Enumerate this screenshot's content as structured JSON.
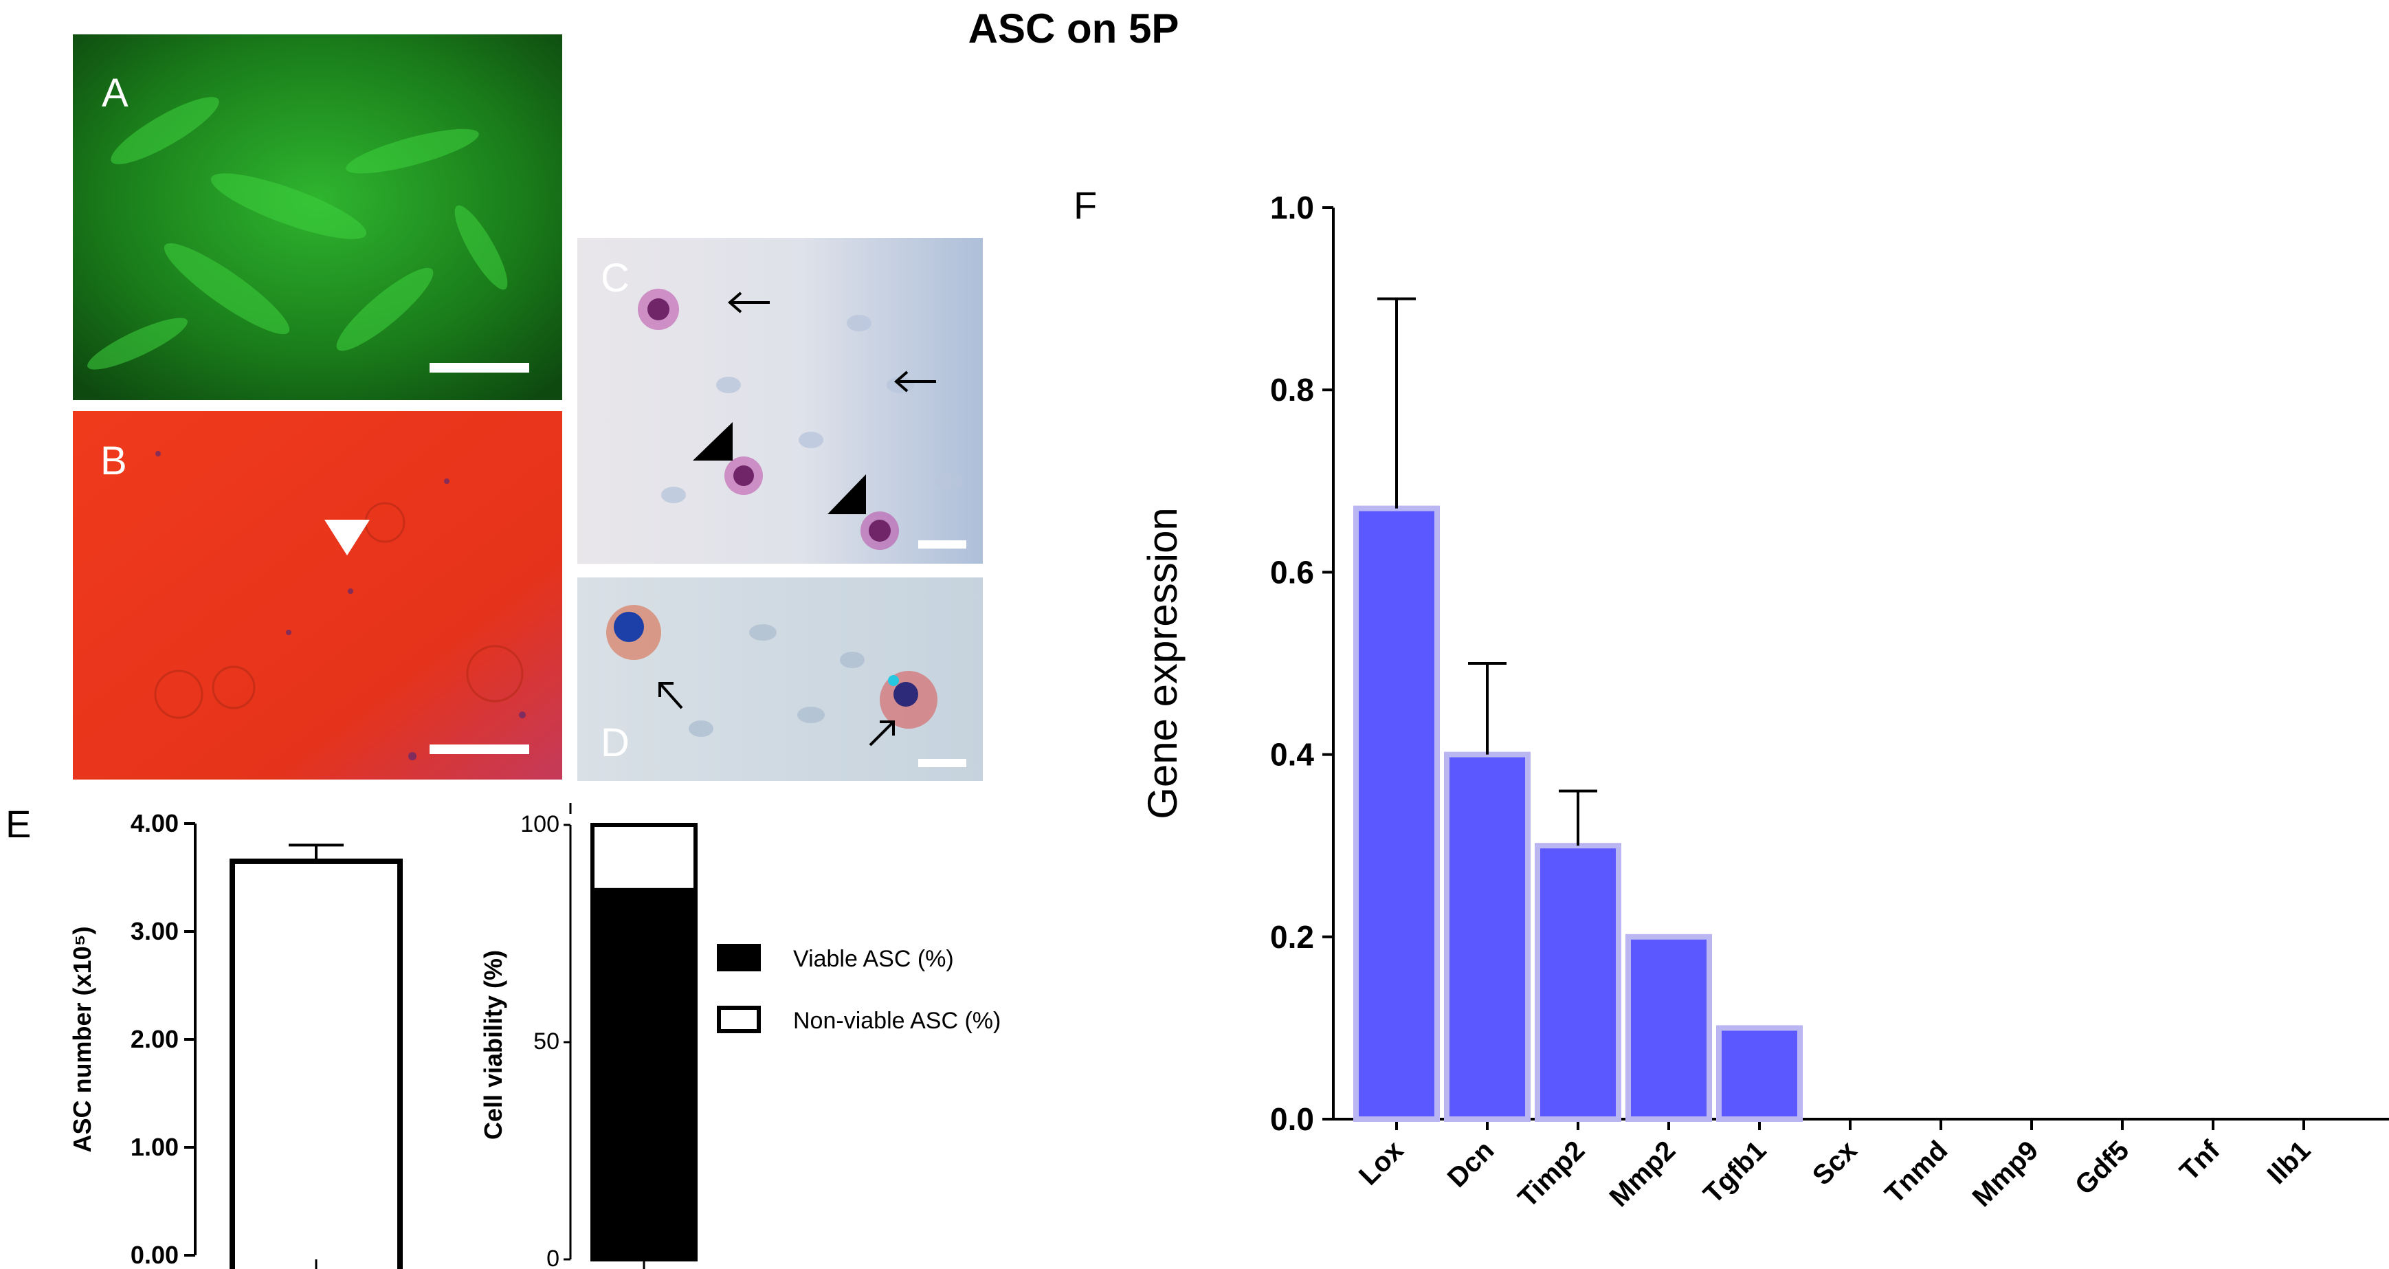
{
  "title": "ASC on 5P",
  "panels": {
    "A": {
      "label": "A"
    },
    "B": {
      "label": "B"
    },
    "C": {
      "label": "C"
    },
    "D": {
      "label": "D"
    },
    "E": {
      "label": "E"
    },
    "F": {
      "label": "F"
    }
  },
  "colors": {
    "fluorescence": "#1a7d1a",
    "stain_red": "#e8341a",
    "histology_bg": "#dfe3ea",
    "bar_f": "#5b58ff",
    "bar_f_edge": "#b9b6f2"
  },
  "chart_data": [
    {
      "id": "E-left",
      "type": "bar",
      "categories": [
        ""
      ],
      "values": [
        3.65
      ],
      "errors": [
        0.15
      ],
      "ylabel": "ASC number (x10⁵)",
      "ylim": [
        0,
        4
      ],
      "yticks": [
        "0.00",
        "1.00",
        "2.00",
        "3.00",
        "4.00"
      ],
      "ytick_values": [
        0,
        1,
        2,
        3,
        4
      ],
      "grid": false
    },
    {
      "id": "E-right",
      "type": "bar",
      "stacked": true,
      "categories": [
        ""
      ],
      "series": [
        {
          "name": "Viable ASC (%)",
          "values": [
            85
          ],
          "color": "#000000"
        },
        {
          "name": "Non-viable ASC (%)",
          "values": [
            15
          ],
          "color": "#ffffff"
        }
      ],
      "ylabel": "Cell viability (%)",
      "ylim": [
        0,
        100
      ],
      "yticks": [
        "0",
        "50",
        "100"
      ],
      "ytick_values": [
        0,
        50,
        100
      ],
      "legend_position": "right",
      "grid": false
    },
    {
      "id": "F",
      "type": "bar",
      "title": "",
      "xlabel": "",
      "ylabel": "Gene expression",
      "categories": [
        "Lox",
        "Dcn",
        "Timp2",
        "Mmp2",
        "Tgfb1",
        "Scx",
        "Tnmd",
        "Mmp9",
        "Gdf5",
        "Tnf",
        "Ilb1"
      ],
      "values": [
        0.67,
        0.4,
        0.3,
        0.2,
        0.1,
        0,
        0,
        0,
        0,
        0,
        0
      ],
      "errors": [
        0.23,
        0.1,
        0.06,
        0,
        0,
        0,
        0,
        0,
        0,
        0,
        0
      ],
      "ylim": [
        0,
        1.0
      ],
      "yticks": [
        "0.0",
        "0.2",
        "0.4",
        "0.6",
        "0.8",
        "1.0"
      ],
      "ytick_values": [
        0,
        0.2,
        0.4,
        0.6,
        0.8,
        1.0
      ],
      "grid": false
    }
  ]
}
